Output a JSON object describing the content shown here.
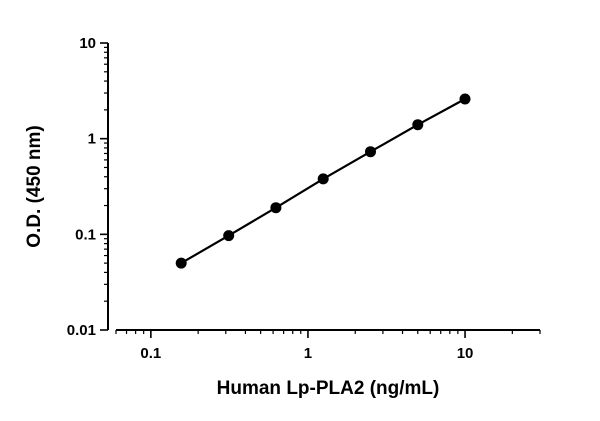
{
  "chart_data": {
    "type": "scatter",
    "x_scale": "log",
    "y_scale": "log",
    "xlabel": "Human Lp-PLA2 (ng/mL)",
    "ylabel": "O.D. (450 nm)",
    "xlim": [
      0.06,
      30
    ],
    "ylim": [
      0.01,
      10
    ],
    "x_ticks": [
      0.1,
      1,
      10
    ],
    "x_tick_labels": [
      "0.1",
      "1",
      "10"
    ],
    "y_ticks": [
      0.01,
      0.1,
      1,
      10
    ],
    "y_tick_labels": [
      "0.01",
      "0.1",
      "1",
      "10"
    ],
    "grid": false,
    "legend": false,
    "series": [
      {
        "x": [
          0.156,
          0.313,
          0.625,
          1.25,
          2.5,
          5,
          10
        ],
        "y": [
          0.05,
          0.097,
          0.19,
          0.38,
          0.73,
          1.4,
          2.6
        ],
        "marker": "circle",
        "line": "fitted",
        "color": "#000000"
      }
    ]
  }
}
